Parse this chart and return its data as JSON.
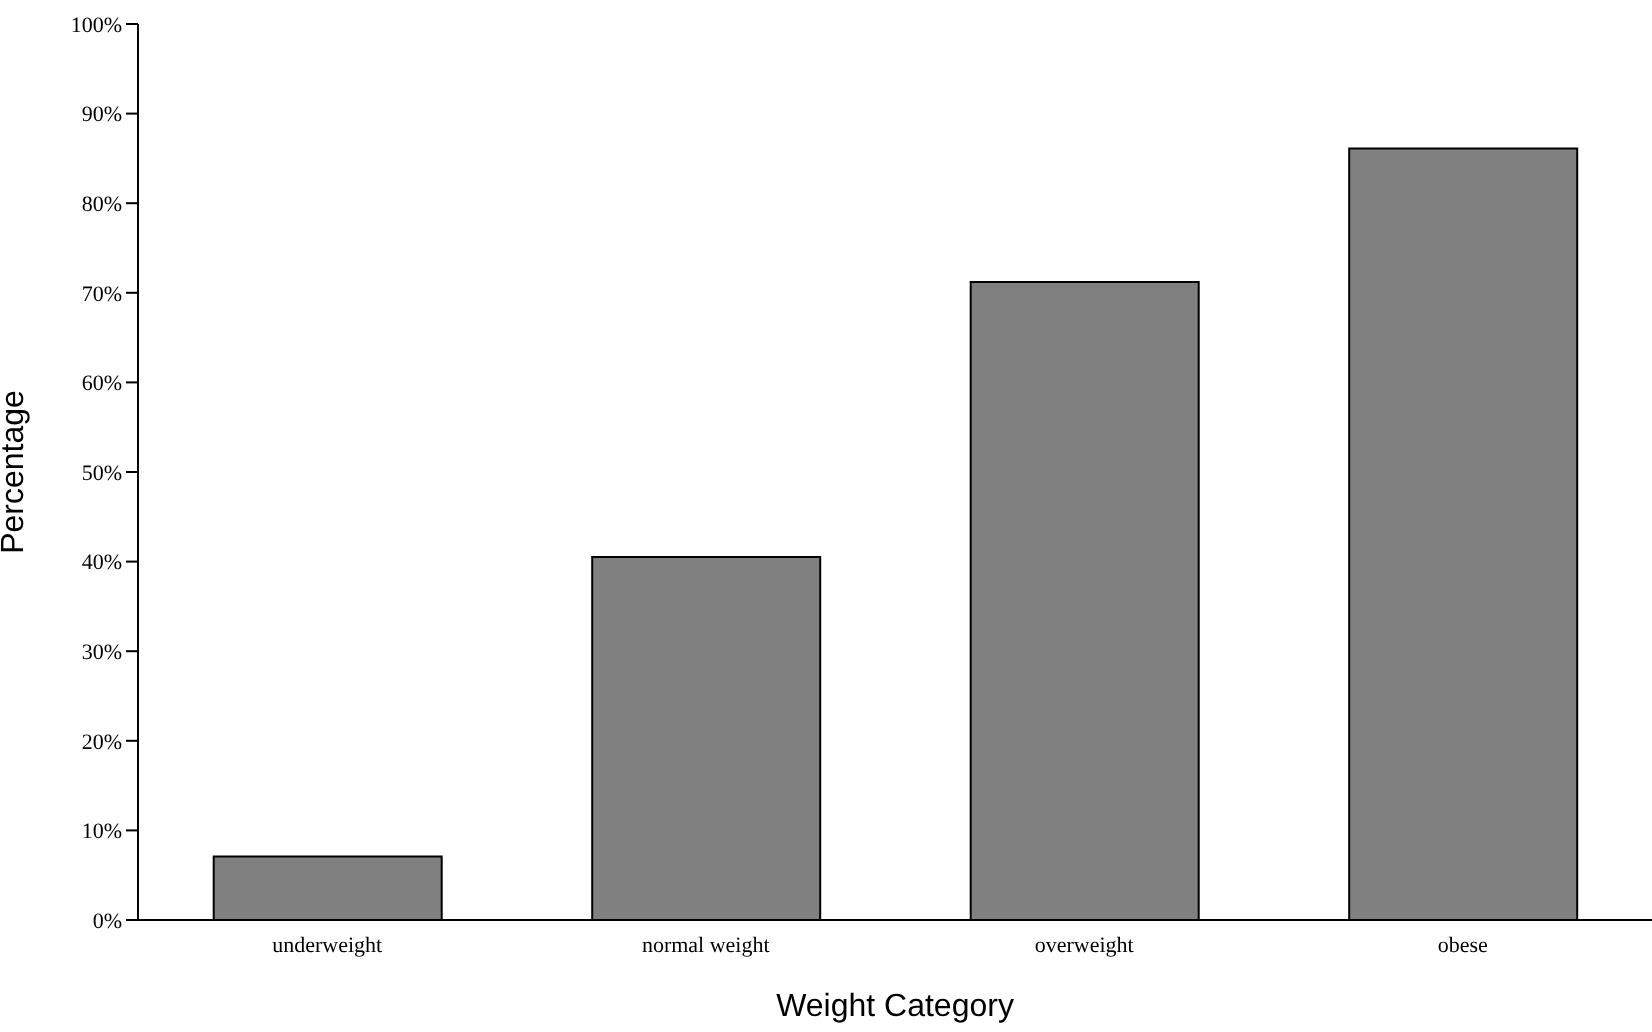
{
  "chart_data": {
    "type": "bar",
    "xlabel": "Weight Category",
    "ylabel": "Percentage",
    "categories": [
      "underweight",
      "normal weight",
      "overweight",
      "obese"
    ],
    "values": [
      7.1,
      40.5,
      71.2,
      86.1
    ],
    "color": "#808080",
    "ylim": [
      0,
      100
    ],
    "yticks": [
      {
        "value": 0,
        "label": "0%"
      },
      {
        "value": 10,
        "label": "10%"
      },
      {
        "value": 20,
        "label": "20%"
      },
      {
        "value": 30,
        "label": "30%"
      },
      {
        "value": 40,
        "label": "40%"
      },
      {
        "value": 50,
        "label": "50%"
      },
      {
        "value": 60,
        "label": "60%"
      },
      {
        "value": 70,
        "label": "70%"
      },
      {
        "value": 80,
        "label": "80%"
      },
      {
        "value": 90,
        "label": "90%"
      },
      {
        "value": 100,
        "label": "100%"
      }
    ],
    "grid": false,
    "legend": false
  }
}
